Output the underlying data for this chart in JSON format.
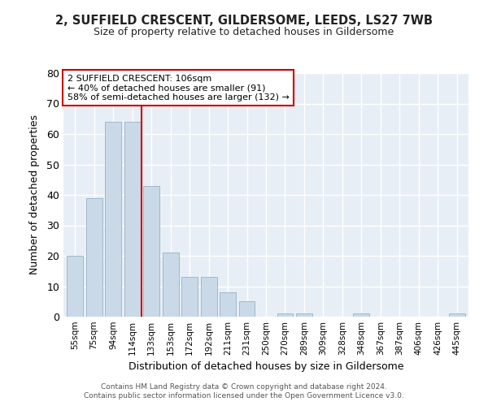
{
  "title": "2, SUFFIELD CRESCENT, GILDERSOME, LEEDS, LS27 7WB",
  "subtitle": "Size of property relative to detached houses in Gildersome",
  "xlabel": "Distribution of detached houses by size in Gildersome",
  "ylabel": "Number of detached properties",
  "bar_labels": [
    "55sqm",
    "75sqm",
    "94sqm",
    "114sqm",
    "133sqm",
    "153sqm",
    "172sqm",
    "192sqm",
    "211sqm",
    "231sqm",
    "250sqm",
    "270sqm",
    "289sqm",
    "309sqm",
    "328sqm",
    "348sqm",
    "367sqm",
    "387sqm",
    "406sqm",
    "426sqm",
    "445sqm"
  ],
  "bar_values": [
    20,
    39,
    64,
    64,
    43,
    21,
    13,
    13,
    8,
    5,
    0,
    1,
    1,
    0,
    0,
    1,
    0,
    0,
    0,
    0,
    1
  ],
  "bar_color": "#c9d9e8",
  "bar_edge_color": "#a0b8cc",
  "ylim": [
    0,
    80
  ],
  "yticks": [
    0,
    10,
    20,
    30,
    40,
    50,
    60,
    70,
    80
  ],
  "vline_x": 3.5,
  "vline_color": "#cc0000",
  "annotation_title": "2 SUFFIELD CRESCENT: 106sqm",
  "annotation_line2": "← 40% of detached houses are smaller (91)",
  "annotation_line3": "58% of semi-detached houses are larger (132) →",
  "annotation_box_color": "#ffffff",
  "annotation_box_edge": "#cc0000",
  "footnote1": "Contains HM Land Registry data © Crown copyright and database right 2024.",
  "footnote2": "Contains public sector information licensed under the Open Government Licence v3.0.",
  "background_color": "#ffffff",
  "plot_bg_color": "#e8eef5"
}
